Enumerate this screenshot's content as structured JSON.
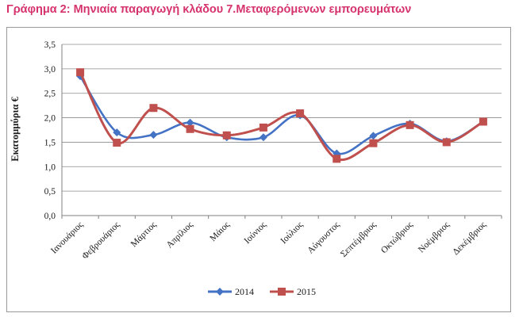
{
  "title": "Γράφημα 2: Μηνιαία παραγωγή κλάδου 7.Μεταφερόμενων εμπορευμάτων",
  "chart_data": {
    "type": "line",
    "smooth": true,
    "ylabel": "Εκατομμύρια €",
    "xlabel": "",
    "ylim": [
      0,
      3.5
    ],
    "y_ticks": [
      "0,0",
      "0,5",
      "1,0",
      "1,5",
      "2,0",
      "2,5",
      "3,0",
      "3,5"
    ],
    "grid": true,
    "legend_position": "bottom",
    "categories": [
      "Ιανουάριος",
      "Φεβρουάριος",
      "Μάρτιος",
      "Απρίλιος",
      "Μάιος",
      "Ιούνιος",
      "Ιούλιος",
      "Αύγουστος",
      "Σεπτέμβριος",
      "Οκτώβριος",
      "Νοέμβριος",
      "Δεκέμβριος"
    ],
    "series": [
      {
        "name": "2014",
        "color": "#4472c4",
        "marker": "diamond",
        "values": [
          2.85,
          1.7,
          1.65,
          1.9,
          1.6,
          1.6,
          2.05,
          1.27,
          1.63,
          1.88,
          1.52,
          1.92
        ]
      },
      {
        "name": "2015",
        "color": "#c0504d",
        "marker": "square",
        "values": [
          2.93,
          1.49,
          2.2,
          1.77,
          1.64,
          1.8,
          2.09,
          1.16,
          1.48,
          1.85,
          1.5,
          1.92
        ]
      }
    ]
  }
}
